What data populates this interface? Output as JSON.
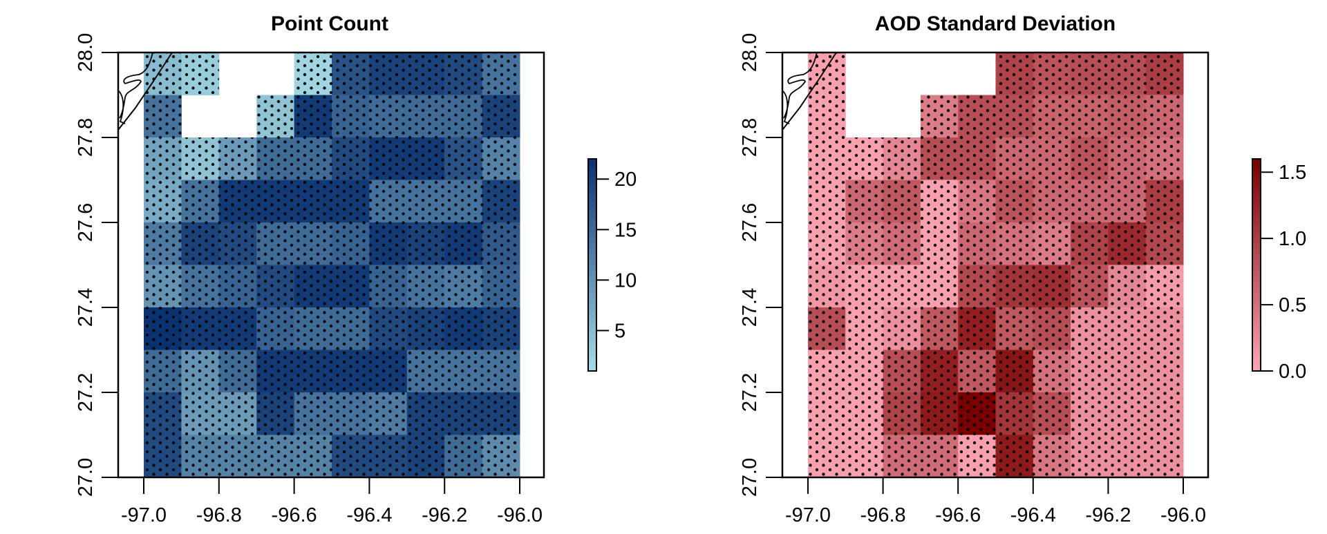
{
  "chart_data": [
    {
      "type": "heatmap",
      "title": "Point Count",
      "xlabel": "",
      "ylabel": "",
      "x_edges": [
        -97.0,
        -96.9,
        -96.8,
        -96.7,
        -96.6,
        -96.5,
        -96.4,
        -96.3,
        -96.2,
        -96.1,
        -96.0
      ],
      "y_edges_top_to_bottom": [
        28.0,
        27.9,
        27.8,
        27.7,
        27.6,
        27.5,
        27.4,
        27.3,
        27.2,
        27.1,
        27.0
      ],
      "xlim": [
        -97.08,
        -95.94
      ],
      "ylim": [
        27.0,
        28.0
      ],
      "x_ticks": [
        "-97.0",
        "-96.8",
        "-96.6",
        "-96.4",
        "-96.2",
        "-96.0"
      ],
      "y_ticks": [
        "27.0",
        "27.2",
        "27.4",
        "27.6",
        "27.8",
        "28.0"
      ],
      "values": [
        [
          5,
          3,
          null,
          null,
          2,
          18,
          20,
          20,
          19,
          14
        ],
        [
          14,
          null,
          null,
          4,
          21,
          16,
          15,
          15,
          15,
          20
        ],
        [
          8,
          4,
          9,
          15,
          15,
          19,
          21,
          21,
          18,
          12
        ],
        [
          7,
          14,
          21,
          21,
          21,
          21,
          14,
          14,
          14,
          20
        ],
        [
          13,
          20,
          19,
          15,
          15,
          16,
          21,
          20,
          21,
          17
        ],
        [
          10,
          14,
          16,
          19,
          21,
          21,
          16,
          14,
          13,
          16
        ],
        [
          22,
          21,
          21,
          16,
          15,
          15,
          19,
          20,
          21,
          20
        ],
        [
          15,
          10,
          15,
          21,
          21,
          21,
          21,
          14,
          14,
          14
        ],
        [
          19,
          9,
          9,
          20,
          14,
          14,
          13,
          20,
          20,
          20
        ],
        [
          19,
          12,
          12,
          12,
          12,
          19,
          19,
          20,
          15,
          11
        ]
      ],
      "colorbar": {
        "range": [
          1,
          22
        ],
        "ticks": [
          "5",
          "10",
          "15",
          "20"
        ],
        "tick_values": [
          5,
          10,
          15,
          20
        ],
        "low_color": "#a6dce6",
        "high_color": "#0b3270"
      }
    },
    {
      "type": "heatmap",
      "title": "AOD Standard Deviation",
      "xlabel": "",
      "ylabel": "",
      "x_edges": [
        -97.0,
        -96.9,
        -96.8,
        -96.7,
        -96.6,
        -96.5,
        -96.4,
        -96.3,
        -96.2,
        -96.1,
        -96.0
      ],
      "y_edges_top_to_bottom": [
        28.0,
        27.9,
        27.8,
        27.7,
        27.6,
        27.5,
        27.4,
        27.3,
        27.2,
        27.1,
        27.0
      ],
      "xlim": [
        -97.08,
        -95.94
      ],
      "ylim": [
        27.0,
        28.0
      ],
      "x_ticks": [
        "-97.0",
        "-96.8",
        "-96.6",
        "-96.4",
        "-96.2",
        "-96.0"
      ],
      "y_ticks": [
        "27.0",
        "27.2",
        "27.4",
        "27.6",
        "27.8",
        "28.0"
      ],
      "values": [
        [
          0.05,
          null,
          null,
          null,
          null,
          0.95,
          0.8,
          0.85,
          0.85,
          1.0
        ],
        [
          0.05,
          null,
          null,
          0.4,
          0.85,
          0.85,
          0.65,
          0.65,
          0.7,
          0.6
        ],
        [
          0.05,
          0.05,
          0.3,
          0.85,
          0.85,
          0.6,
          0.6,
          0.8,
          0.6,
          0.5
        ],
        [
          0.05,
          0.6,
          0.75,
          0.05,
          0.45,
          0.8,
          0.6,
          0.6,
          0.6,
          1.0
        ],
        [
          0.05,
          0.4,
          0.55,
          0.05,
          0.6,
          0.5,
          0.4,
          0.95,
          1.2,
          0.9
        ],
        [
          0.15,
          0.05,
          0.05,
          0.05,
          0.9,
          1.1,
          1.15,
          0.8,
          0.3,
          0.1
        ],
        [
          0.85,
          0.05,
          0.2,
          0.75,
          1.3,
          0.75,
          0.85,
          0.2,
          0.2,
          0.2
        ],
        [
          0.05,
          0.05,
          0.85,
          1.3,
          0.75,
          1.4,
          0.5,
          0.2,
          0.2,
          0.2
        ],
        [
          0.05,
          0.05,
          0.95,
          1.35,
          1.6,
          1.1,
          0.85,
          0.2,
          0.2,
          0.2
        ],
        [
          0.05,
          0.05,
          0.55,
          0.55,
          0.05,
          1.35,
          0.45,
          0.2,
          0.2,
          0.2
        ]
      ],
      "colorbar": {
        "range": [
          0,
          1.6
        ],
        "ticks": [
          "0.0",
          "0.5",
          "1.0",
          "1.5"
        ],
        "tick_values": [
          0,
          0.5,
          1.0,
          1.5
        ],
        "low_color": "#fda5b5",
        "high_color": "#7a0000"
      }
    }
  ]
}
